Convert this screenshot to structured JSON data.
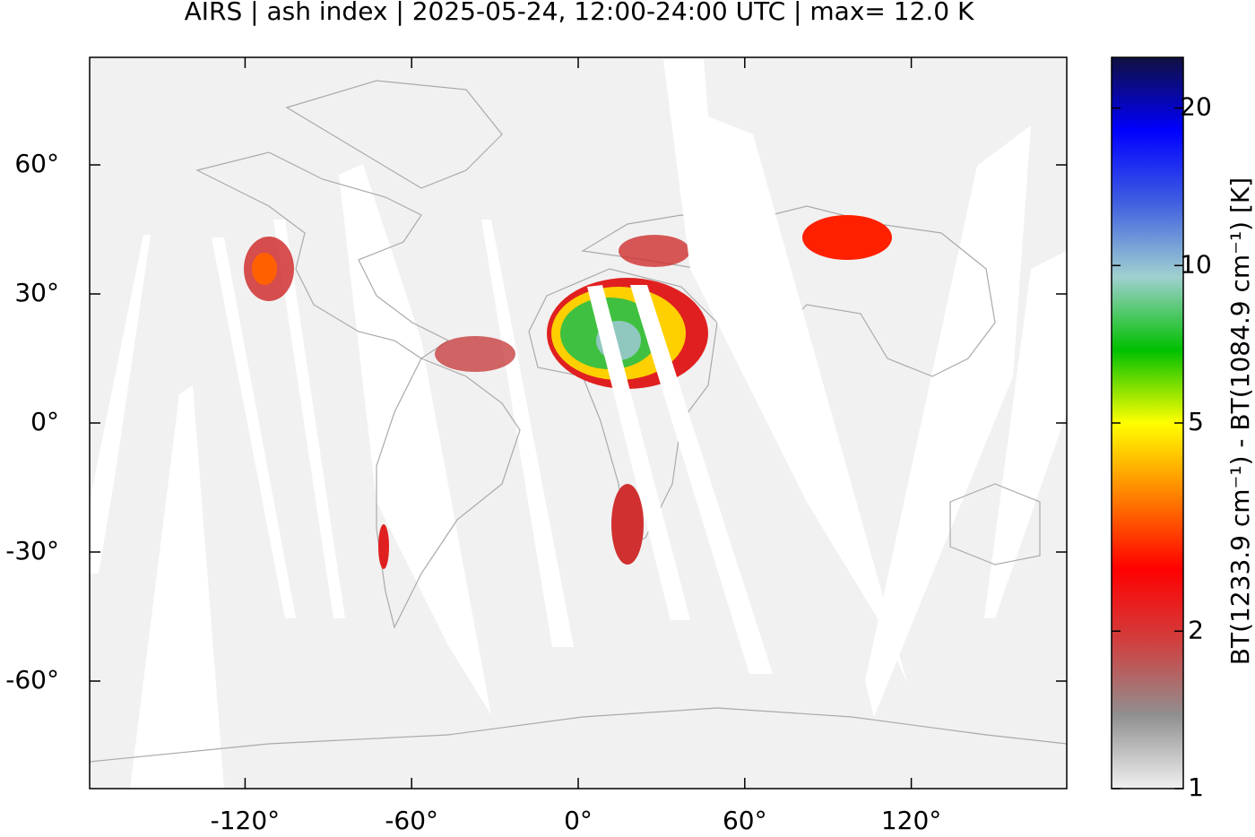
{
  "chart_data": {
    "type": "map",
    "title": "AIRS | ash index | 2025-05-24, 12:00-24:00 UTC | max= 12.0 K",
    "xlim": [
      -176,
      176
    ],
    "ylim": [
      -85,
      85
    ],
    "xticks": [
      {
        "value": -120,
        "label": "-120°"
      },
      {
        "value": -60,
        "label": "-60°"
      },
      {
        "value": 0,
        "label": "0°"
      },
      {
        "value": 60,
        "label": "60°"
      },
      {
        "value": 120,
        "label": "120°"
      }
    ],
    "yticks": [
      {
        "value": -60,
        "label": "-60°"
      },
      {
        "value": -30,
        "label": "-30°"
      },
      {
        "value": 0,
        "label": "0°"
      },
      {
        "value": 30,
        "label": "30°"
      },
      {
        "value": 60,
        "label": "60°"
      }
    ],
    "colorbar": {
      "label": "BT(1233.9 cm⁻¹) - BT(1084.9 cm⁻¹) [K]",
      "lim": [
        1,
        25
      ],
      "log": true,
      "ticks": [
        1,
        2,
        5,
        10,
        20
      ],
      "colors": [
        "#f0f0f0",
        "#909090",
        "#d04040",
        "#ff0000",
        "#ff8000",
        "#ffff00",
        "#00c000",
        "#a0d0d0",
        "#4060e0",
        "#0000ff",
        "#101040"
      ]
    }
  }
}
